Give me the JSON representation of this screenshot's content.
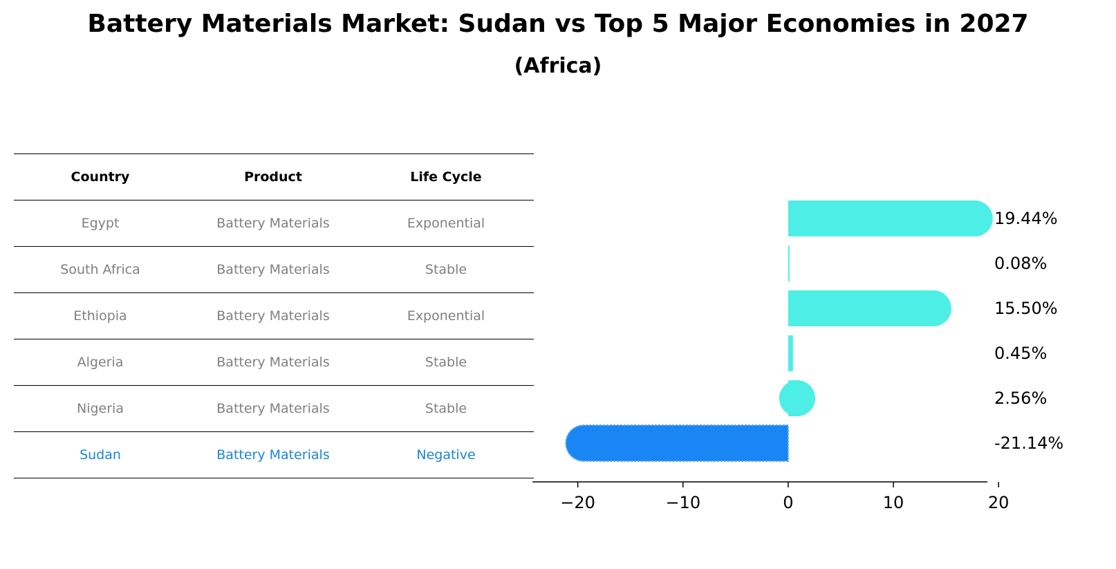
{
  "title": "Battery Materials Market: Sudan vs Top 5 Major Economies in 2027",
  "subtitle": "(Africa)",
  "table": {
    "headers": [
      "Country",
      "Product",
      "Life Cycle"
    ],
    "rows": [
      [
        "Egypt",
        "Battery Materials",
        "Exponential"
      ],
      [
        "South Africa",
        "Battery Materials",
        "Stable"
      ],
      [
        "Ethiopia",
        "Battery Materials",
        "Exponential"
      ],
      [
        "Algeria",
        "Battery Materials",
        "Stable"
      ],
      [
        "Nigeria",
        "Battery Materials",
        "Stable"
      ],
      [
        "Sudan",
        "Battery Materials",
        "Negative"
      ]
    ]
  },
  "colors": {
    "positive_bar": "#4deee6",
    "negative_bar": "#1a85f5",
    "highlight_text": "#1a85d9",
    "muted_text": "#808080"
  },
  "chart_data": {
    "type": "bar",
    "orientation": "horizontal",
    "categories": [
      "Egypt",
      "South Africa",
      "Ethiopia",
      "Algeria",
      "Nigeria",
      "Sudan"
    ],
    "values": [
      19.44,
      0.08,
      15.5,
      0.45,
      2.56,
      -21.14
    ],
    "value_labels": [
      "19.44%",
      "0.08%",
      "15.50%",
      "0.45%",
      "2.56%",
      "-21.14%"
    ],
    "xlim": [
      -23,
      21.5
    ],
    "xticks": [
      -20,
      -10,
      0,
      10,
      20
    ],
    "xtick_labels": [
      "−20",
      "−10",
      "0",
      "10",
      "20"
    ],
    "grid": false
  }
}
